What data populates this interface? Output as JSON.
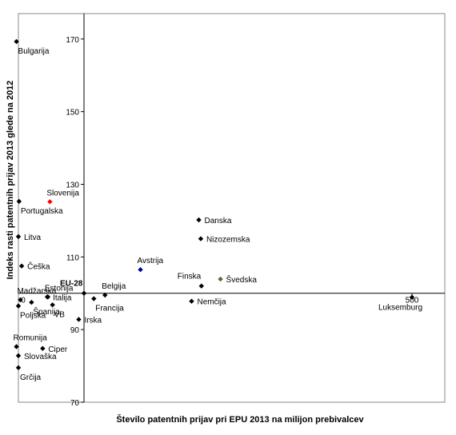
{
  "chart_data": {
    "type": "scatter",
    "title": "",
    "xlabel": "Število patentnih prijav pri EPU 2013 na milijon prebivalcev",
    "ylabel": "Indeks rasti patentnih prijav 2013 glede na 2012",
    "xlim": [
      -100,
      550
    ],
    "ylim": [
      70,
      177
    ],
    "x_ticks": [
      {
        "value": 0,
        "label": "0"
      },
      {
        "value": 500,
        "label": "500"
      }
    ],
    "y_ticks": [
      {
        "value": 70,
        "label": "70"
      },
      {
        "value": 90,
        "label": "90"
      },
      {
        "value": 110,
        "label": "110"
      },
      {
        "value": 130,
        "label": "130"
      },
      {
        "value": 150,
        "label": "150"
      },
      {
        "value": 170,
        "label": "170"
      }
    ],
    "axis_crossing": {
      "x": 0,
      "y": 100
    },
    "grid": false,
    "colors": {
      "default": "#000000",
      "slovenija": "#ff0000",
      "eu": "#000099",
      "svedska": "#556b2f"
    },
    "points": [
      {
        "name": "Bulgarija",
        "x": -103,
        "y": 169.3,
        "color": "#000000",
        "label_anchor": "below"
      },
      {
        "name": "Slovenija",
        "x": -52,
        "y": 125.2,
        "color": "#ff0000",
        "label_anchor": "above"
      },
      {
        "name": "Portugalska",
        "x": -99,
        "y": 125.3,
        "color": "#000000",
        "label_anchor": "below"
      },
      {
        "name": "Litva",
        "x": -100,
        "y": 115.6,
        "color": "#000000",
        "label_anchor": "right"
      },
      {
        "name": "Češka",
        "x": -95,
        "y": 107.5,
        "color": "#000000",
        "label_anchor": "right"
      },
      {
        "name": "Estonija",
        "x": -55,
        "y": 99.0,
        "color": "#000000",
        "label_anchor": "above"
      },
      {
        "name": "Madžarska",
        "x": -97,
        "y": 98.2,
        "color": "#000000",
        "label_anchor": "above"
      },
      {
        "name": "Poljska",
        "x": -100,
        "y": 96.5,
        "color": "#000000",
        "label_anchor": "below"
      },
      {
        "name": "Španija",
        "x": -80,
        "y": 97.5,
        "color": "#000000",
        "label_anchor": "below"
      },
      {
        "name": "VB",
        "x": -48,
        "y": 96.8,
        "color": "#000000",
        "label_anchor": "below"
      },
      {
        "name": "Italija",
        "x": -56,
        "y": 99.0,
        "color": "#000000",
        "label_anchor": "right"
      },
      {
        "name": "EU-28",
        "x": 0,
        "y": 100,
        "color": "#000000",
        "label_anchor": "above-left",
        "label_color": "#000099"
      },
      {
        "name": "Irska",
        "x": -8,
        "y": 92.8,
        "color": "#000000",
        "label_anchor": "right"
      },
      {
        "name": "Francija",
        "x": 15,
        "y": 98.5,
        "color": "#000000",
        "label_anchor": "below"
      },
      {
        "name": "Belgija",
        "x": 32,
        "y": 99.5,
        "color": "#000000",
        "label_anchor": "above"
      },
      {
        "name": "Avstrija",
        "x": 86,
        "y": 106.5,
        "color": "#000099",
        "label_anchor": "above"
      },
      {
        "name": "Danska",
        "x": 175,
        "y": 120.2,
        "color": "#000000",
        "label_anchor": "right"
      },
      {
        "name": "Nizozemska",
        "x": 178,
        "y": 115.0,
        "color": "#000000",
        "label_anchor": "right"
      },
      {
        "name": "Finska",
        "x": 179,
        "y": 102.0,
        "color": "#000000",
        "label_anchor": "above-left"
      },
      {
        "name": "Švedska",
        "x": 208,
        "y": 103.9,
        "color": "#556b2f",
        "label_anchor": "right"
      },
      {
        "name": "Nemčija",
        "x": 164,
        "y": 97.8,
        "color": "#000000",
        "label_anchor": "right"
      },
      {
        "name": "Luksemburg",
        "x": 500,
        "y": 98.9,
        "color": "#000000",
        "label_anchor": "below-left"
      },
      {
        "name": "Romunija",
        "x": -103,
        "y": 85.3,
        "color": "#000000",
        "label_anchor": "above"
      },
      {
        "name": "Ciper",
        "x": -63,
        "y": 84.8,
        "color": "#000000",
        "label_anchor": "right"
      },
      {
        "name": "Slovaška",
        "x": -100,
        "y": 82.8,
        "color": "#000000",
        "label_anchor": "right"
      },
      {
        "name": "Grčija",
        "x": -100,
        "y": 79.5,
        "color": "#000000",
        "label_anchor": "below"
      }
    ]
  }
}
